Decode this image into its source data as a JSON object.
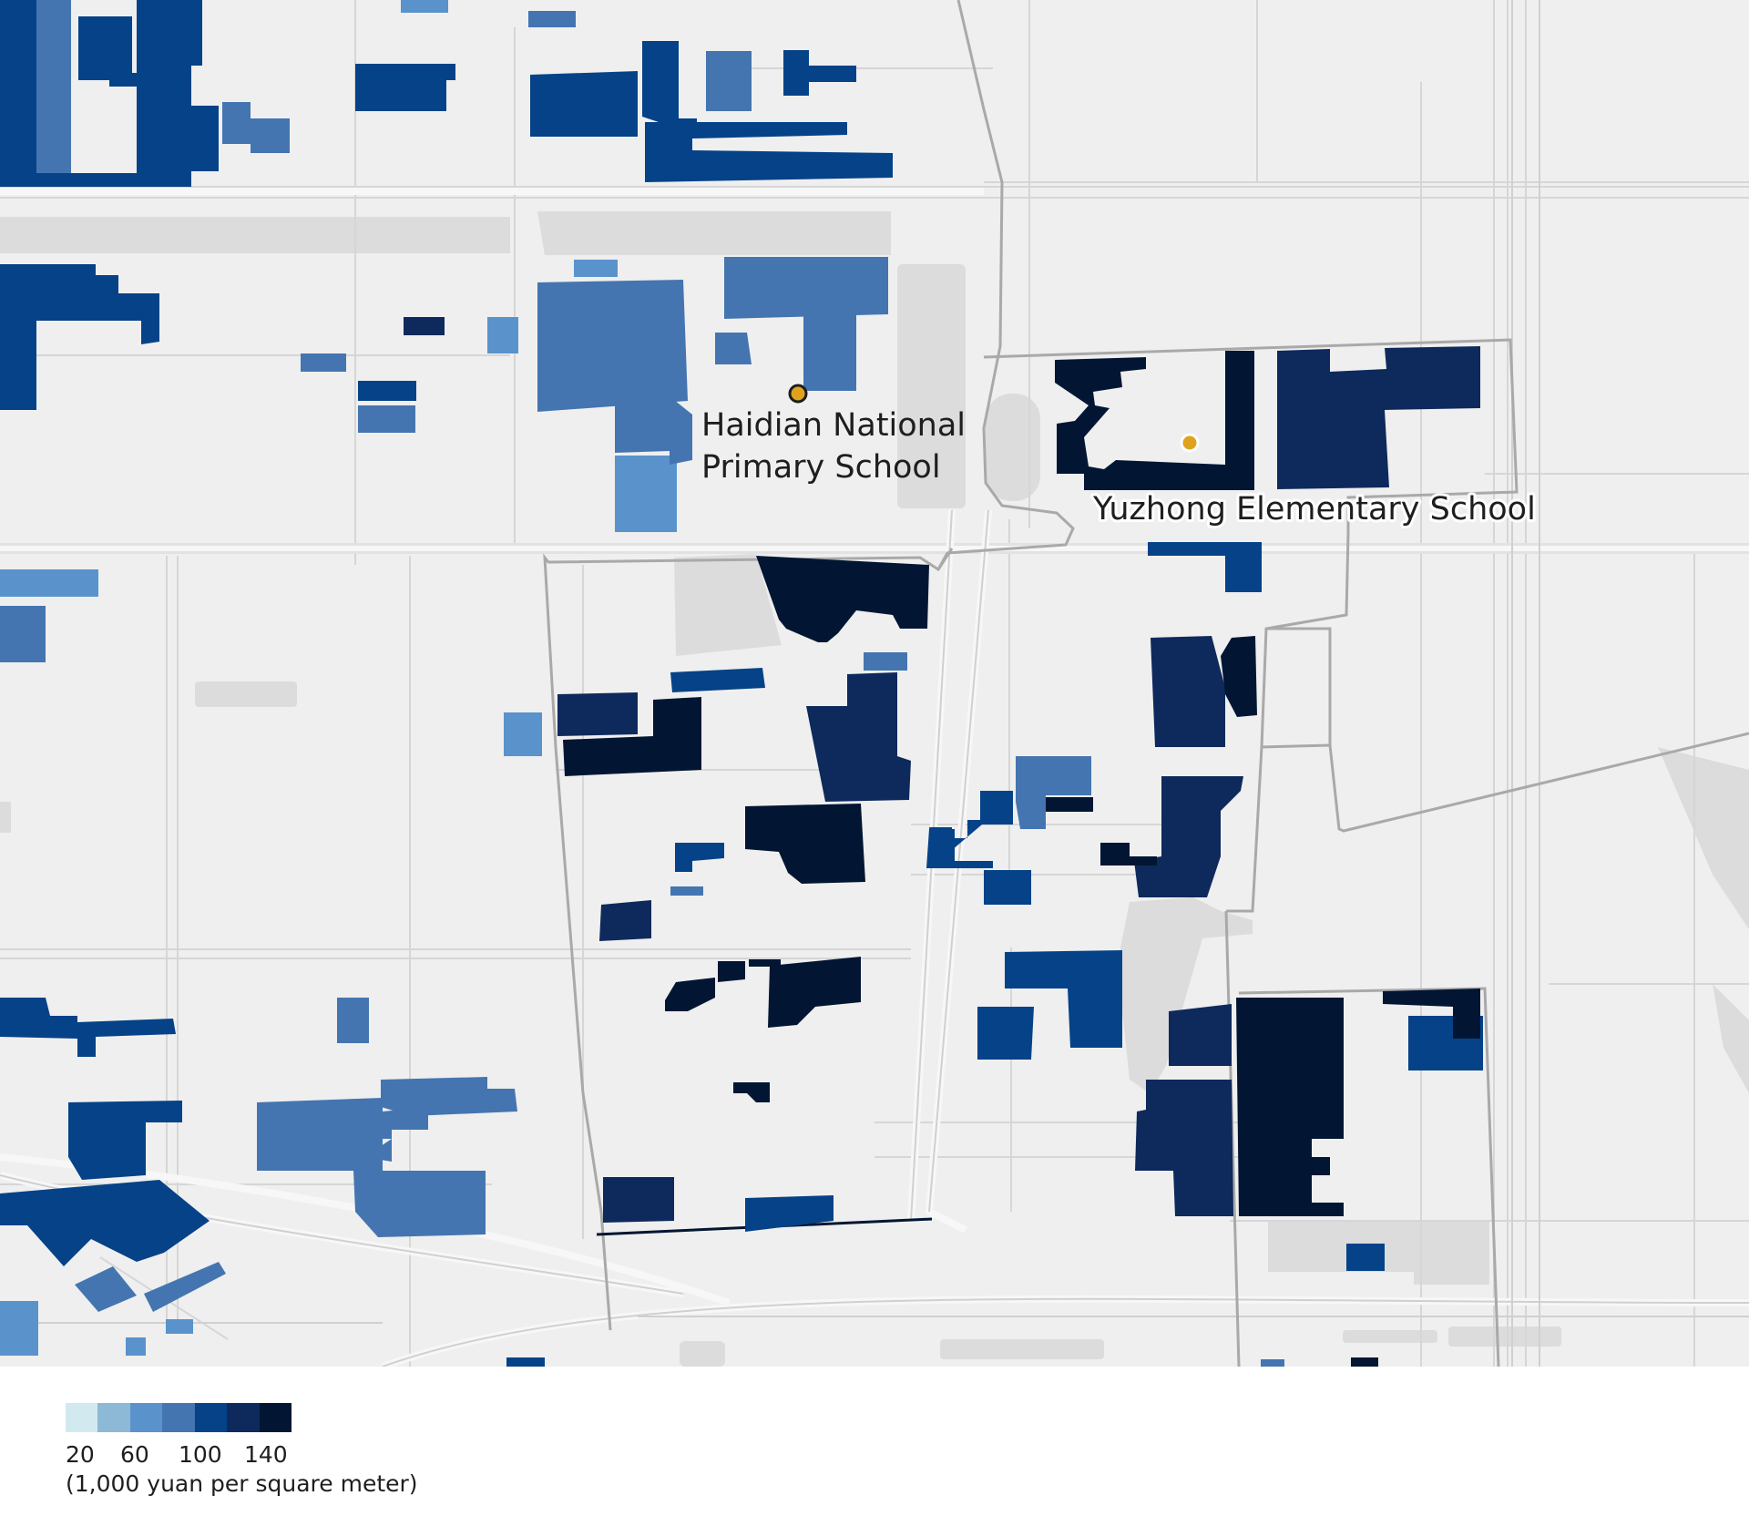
{
  "map": {
    "title": "",
    "labels": {
      "school_1": "Haidian National",
      "school_1_line2": "Primary School",
      "school_2": "Yuzhong Elementary School"
    },
    "colors": {
      "background": "#efefef",
      "road": "#e4e4e4",
      "road_line": "#d2d2d2",
      "block": "#dcdcdc",
      "district_boundary": "#a9a9a9",
      "school_marker": "#e0a21c",
      "class_20_40": "#d2e9ef",
      "class_40_60": "#8db8d6",
      "class_60_80": "#5a93cc",
      "class_80_100": "#4475b0",
      "class_100_120": "#054288",
      "class_120_140": "#0e2a5c",
      "class_140_plus": "#021633"
    }
  },
  "legend": {
    "ticks": [
      "20",
      "60",
      "100",
      "140"
    ],
    "unit": "(1,000 yuan per square meter)",
    "swatches": [
      "#d2e9ef",
      "#8db8d6",
      "#5a93cc",
      "#4475b0",
      "#054288",
      "#0e2a5c",
      "#021633"
    ]
  }
}
